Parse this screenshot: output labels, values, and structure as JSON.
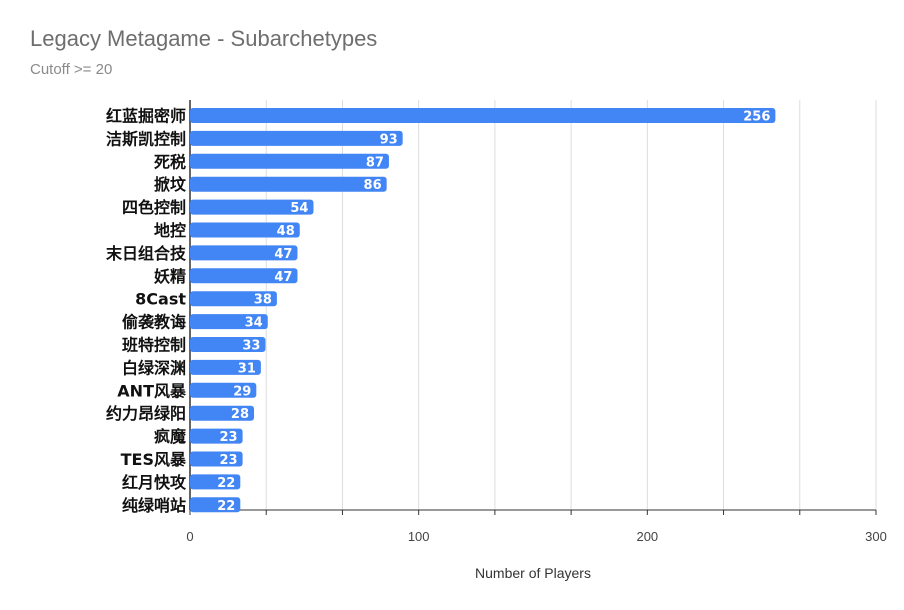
{
  "chart_data": {
    "type": "bar",
    "orientation": "horizontal",
    "title": "Legacy Metagame - Subarchetypes",
    "subtitle": "Cutoff >= 20",
    "xlabel": "Number of Players",
    "ylabel": "",
    "xlim": [
      0,
      300
    ],
    "xticks": [
      0,
      100,
      200,
      300
    ],
    "grid": true,
    "bar_color": "#4285f4",
    "categories": [
      "红蓝掘密师",
      "洁斯凯控制",
      "死税",
      "掀坟",
      "四色控制",
      "地控",
      "末日组合技",
      "妖精",
      "8Cast",
      "偷袭教诲",
      "班特控制",
      "白绿深渊",
      "ANT风暴",
      "约力昂绿阳",
      "疯魔",
      "TES风暴",
      "红月快攻",
      "纯绿哨站"
    ],
    "values": [
      256,
      93,
      87,
      86,
      54,
      48,
      47,
      47,
      38,
      34,
      33,
      31,
      29,
      28,
      23,
      23,
      22,
      22
    ]
  }
}
